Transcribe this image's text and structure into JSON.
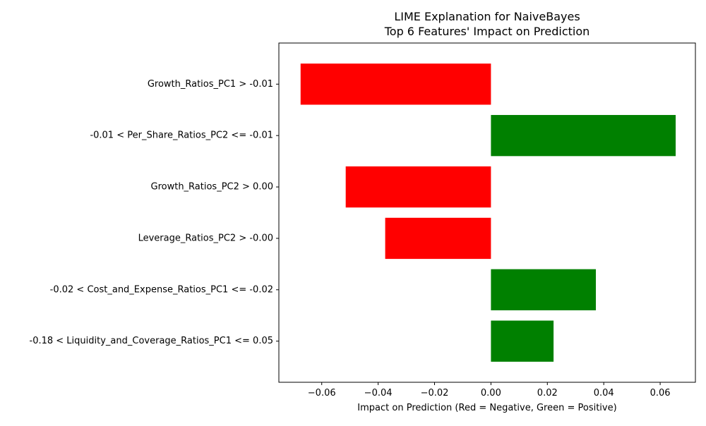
{
  "chart_data": {
    "type": "bar",
    "orientation": "horizontal",
    "title": "LIME Explanation for NaiveBayes",
    "subtitle": "Top 6 Features' Impact on Prediction",
    "xlabel": "Impact on Prediction (Red = Negative, Green = Positive)",
    "ylabel": "",
    "xlim": [
      -0.0752,
      0.0725
    ],
    "x_ticks": [
      -0.06,
      -0.04,
      -0.02,
      0.0,
      0.02,
      0.04,
      0.06
    ],
    "x_tick_labels": [
      "−0.06",
      "−0.04",
      "−0.02",
      "0.00",
      "0.02",
      "0.04",
      "0.06"
    ],
    "grid": false,
    "legend": "none",
    "colors": {
      "negative": "#ff0000",
      "positive": "#008000"
    },
    "categories": [
      "Growth_Ratios_PC1 > -0.01",
      "-0.01 < Per_Share_Ratios_PC2 <= -0.01",
      "Growth_Ratios_PC2 > 0.00",
      "Leverage_Ratios_PC2 > -0.00",
      "-0.02 < Cost_and_Expense_Ratios_PC1 <= -0.02",
      "-0.18 < Liquidity_and_Coverage_Ratios_PC1 <= 0.05"
    ],
    "values": [
      -0.0675,
      0.0655,
      -0.0515,
      -0.0375,
      0.0372,
      0.0222
    ]
  }
}
